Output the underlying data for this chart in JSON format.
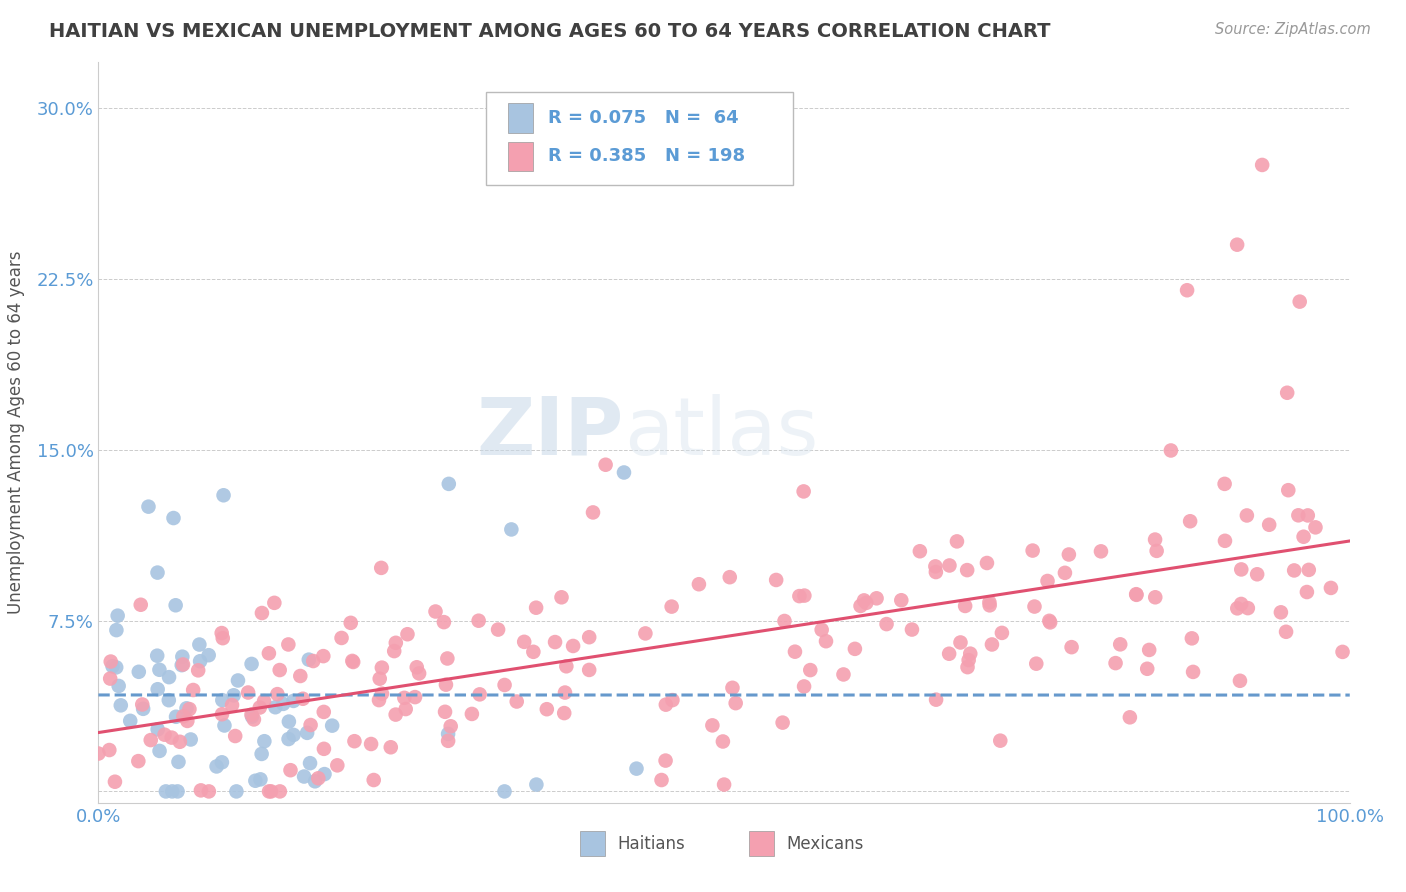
{
  "title": "HAITIAN VS MEXICAN UNEMPLOYMENT AMONG AGES 60 TO 64 YEARS CORRELATION CHART",
  "source": "Source: ZipAtlas.com",
  "ylabel": "Unemployment Among Ages 60 to 64 years",
  "xlim": [
    0.0,
    1.0
  ],
  "ylim": [
    -0.005,
    0.32
  ],
  "x_ticks": [
    0.0,
    0.1,
    0.2,
    0.3,
    0.4,
    0.5,
    0.6,
    0.7,
    0.8,
    0.9,
    1.0
  ],
  "x_tick_labels": [
    "0.0%",
    "",
    "",
    "",
    "",
    "",
    "",
    "",
    "",
    "",
    "100.0%"
  ],
  "y_ticks": [
    0.0,
    0.075,
    0.15,
    0.225,
    0.3
  ],
  "y_tick_labels": [
    "",
    "7.5%",
    "15.0%",
    "22.5%",
    "30.0%"
  ],
  "haitian_R": 0.075,
  "haitian_N": 64,
  "mexican_R": 0.385,
  "mexican_N": 198,
  "haitian_color": "#a8c4e0",
  "mexican_color": "#f4a0b0",
  "haitian_line_color": "#6699cc",
  "mexican_line_color": "#e05070",
  "background_color": "#ffffff",
  "grid_color": "#cccccc",
  "title_color": "#404040",
  "tick_label_color": "#5b9bd5",
  "watermark_zip": "ZIP",
  "watermark_atlas": "atlas",
  "legend_R_color": "#5b9bd5",
  "bottom_legend_color": "#555555"
}
